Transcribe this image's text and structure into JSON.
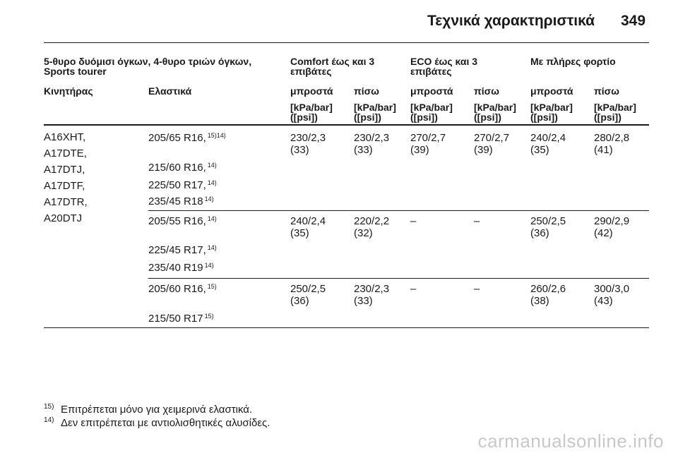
{
  "header": {
    "title": "Τεχνικά χαρακτηριστικά",
    "page": "349"
  },
  "table": {
    "group_headers": {
      "vehicle": "5-θυρο δυόμισι όγκων, 4-θυρο τριών όγκων,",
      "vehicle_line2": "Sports tourer",
      "comfort": "Comfort έως και 3",
      "comfort_line2": "επιβάτες",
      "eco": "ECO έως και 3",
      "eco_line2": "επιβάτες",
      "full": "Με πλήρες φορτίο"
    },
    "columns": {
      "engine": "Κινητήρας",
      "tyres": "Ελαστικά",
      "front": "μπροστά",
      "rear": "πίσω"
    },
    "unit_line1": "[kPa/bar]",
    "unit_line2": "([psi])",
    "engines": [
      "A16XHT,",
      "A17DTE,",
      "A17DTJ,",
      "A17DTF,",
      "A17DTR,",
      "A20DTJ"
    ],
    "groups": [
      {
        "tyres": [
          {
            "size": "205/65 R16,",
            "note": "15)14)"
          },
          {
            "size": "215/60 R16,",
            "note": "14)"
          },
          {
            "size": "225/50 R17,",
            "note": "14)"
          },
          {
            "size": "235/45 R18",
            "note": "14)"
          }
        ],
        "values": [
          {
            "p": "230/2,3",
            "psi": "(33)"
          },
          {
            "p": "230/2,3",
            "psi": "(33)"
          },
          {
            "p": "270/2,7",
            "psi": "(39)"
          },
          {
            "p": "270/2,7",
            "psi": "(39)"
          },
          {
            "p": "240/2,4",
            "psi": "(35)"
          },
          {
            "p": "280/2,8",
            "psi": "(41)"
          }
        ]
      },
      {
        "tyres": [
          {
            "size": "205/55 R16,",
            "note": "14)"
          },
          {
            "size": "225/45 R17,",
            "note": "14)"
          },
          {
            "size": "235/40 R19",
            "note": "14)"
          }
        ],
        "values": [
          {
            "p": "240/2,4",
            "psi": "(35)"
          },
          {
            "p": "220/2,2",
            "psi": "(32)"
          },
          {
            "p": "–",
            "psi": ""
          },
          {
            "p": "–",
            "psi": ""
          },
          {
            "p": "250/2,5",
            "psi": "(36)"
          },
          {
            "p": "290/2,9",
            "psi": "(42)"
          }
        ]
      },
      {
        "tyres": [
          {
            "size": "205/60 R16,",
            "note": "15)"
          },
          {
            "size": "215/50 R17",
            "note": "15)"
          }
        ],
        "values": [
          {
            "p": "250/2,5",
            "psi": "(36)"
          },
          {
            "p": "230/2,3",
            "psi": "(33)"
          },
          {
            "p": "–",
            "psi": ""
          },
          {
            "p": "–",
            "psi": ""
          },
          {
            "p": "260/2,6",
            "psi": "(38)"
          },
          {
            "p": "300/3,0",
            "psi": "(43)"
          }
        ]
      }
    ]
  },
  "footnotes": [
    {
      "num": "15)",
      "text": "Επιτρέπεται μόνο για χειμερινά ελαστικά."
    },
    {
      "num": "14)",
      "text": "Δεν επιτρέπεται με αντιολισθητικές αλυσίδες."
    }
  ],
  "watermark": "carmanualsonline.info"
}
